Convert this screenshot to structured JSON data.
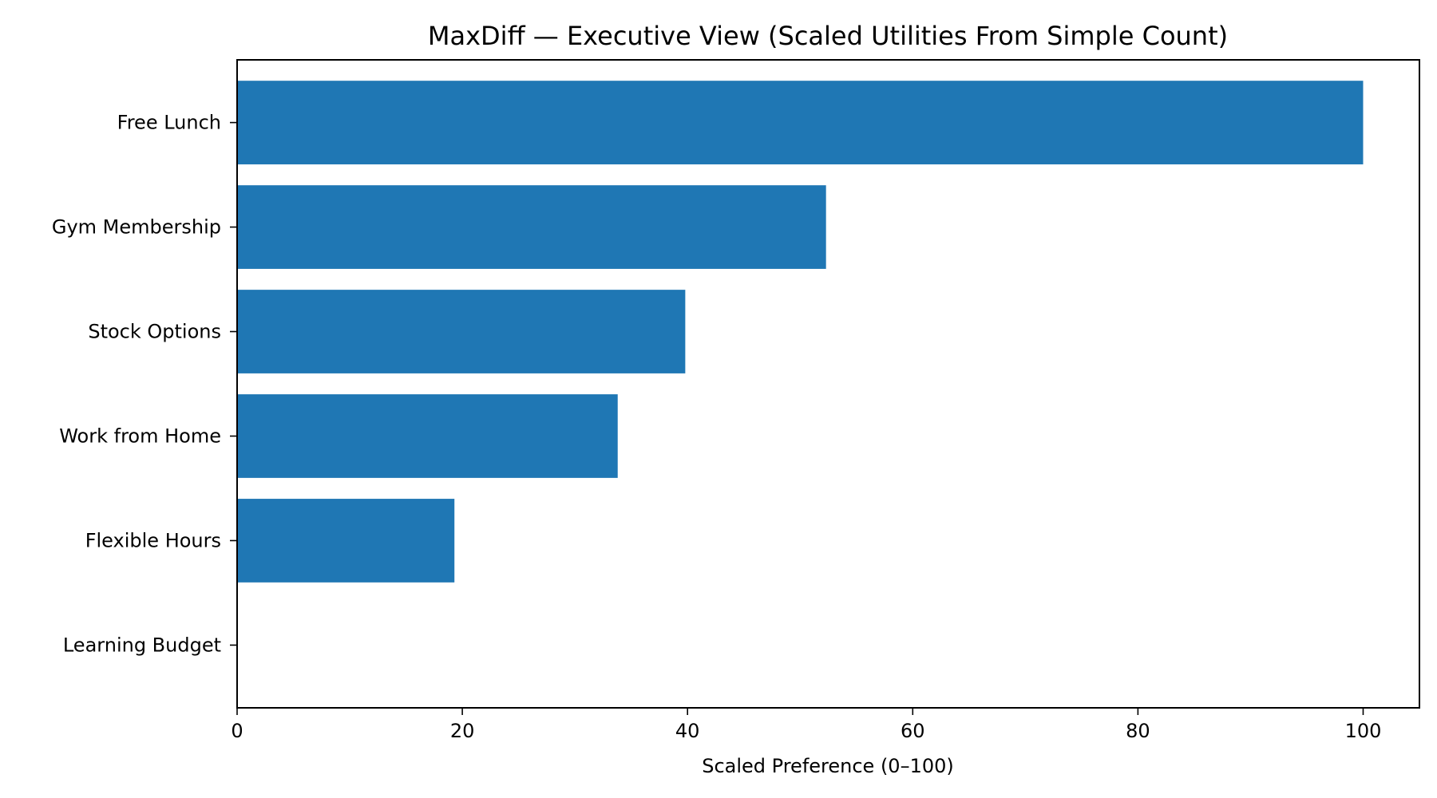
{
  "chart_data": {
    "type": "bar",
    "orientation": "horizontal",
    "title": "MaxDiff — Executive View (Scaled Utilities From Simple Count)",
    "xlabel": "Scaled Preference (0–100)",
    "ylabel": "",
    "categories": [
      "Free Lunch",
      "Gym Membership",
      "Stock Options",
      "Work from Home",
      "Flexible Hours",
      "Learning Budget"
    ],
    "values": [
      100,
      52.3,
      39.8,
      33.8,
      19.3,
      0
    ],
    "xlim": [
      0,
      105
    ],
    "xticks": [
      0,
      20,
      40,
      60,
      80,
      100
    ],
    "xtick_labels": [
      "0",
      "20",
      "40",
      "60",
      "80",
      "100"
    ],
    "bar_color": "#1f77b4",
    "grid": false,
    "legend": false
  }
}
